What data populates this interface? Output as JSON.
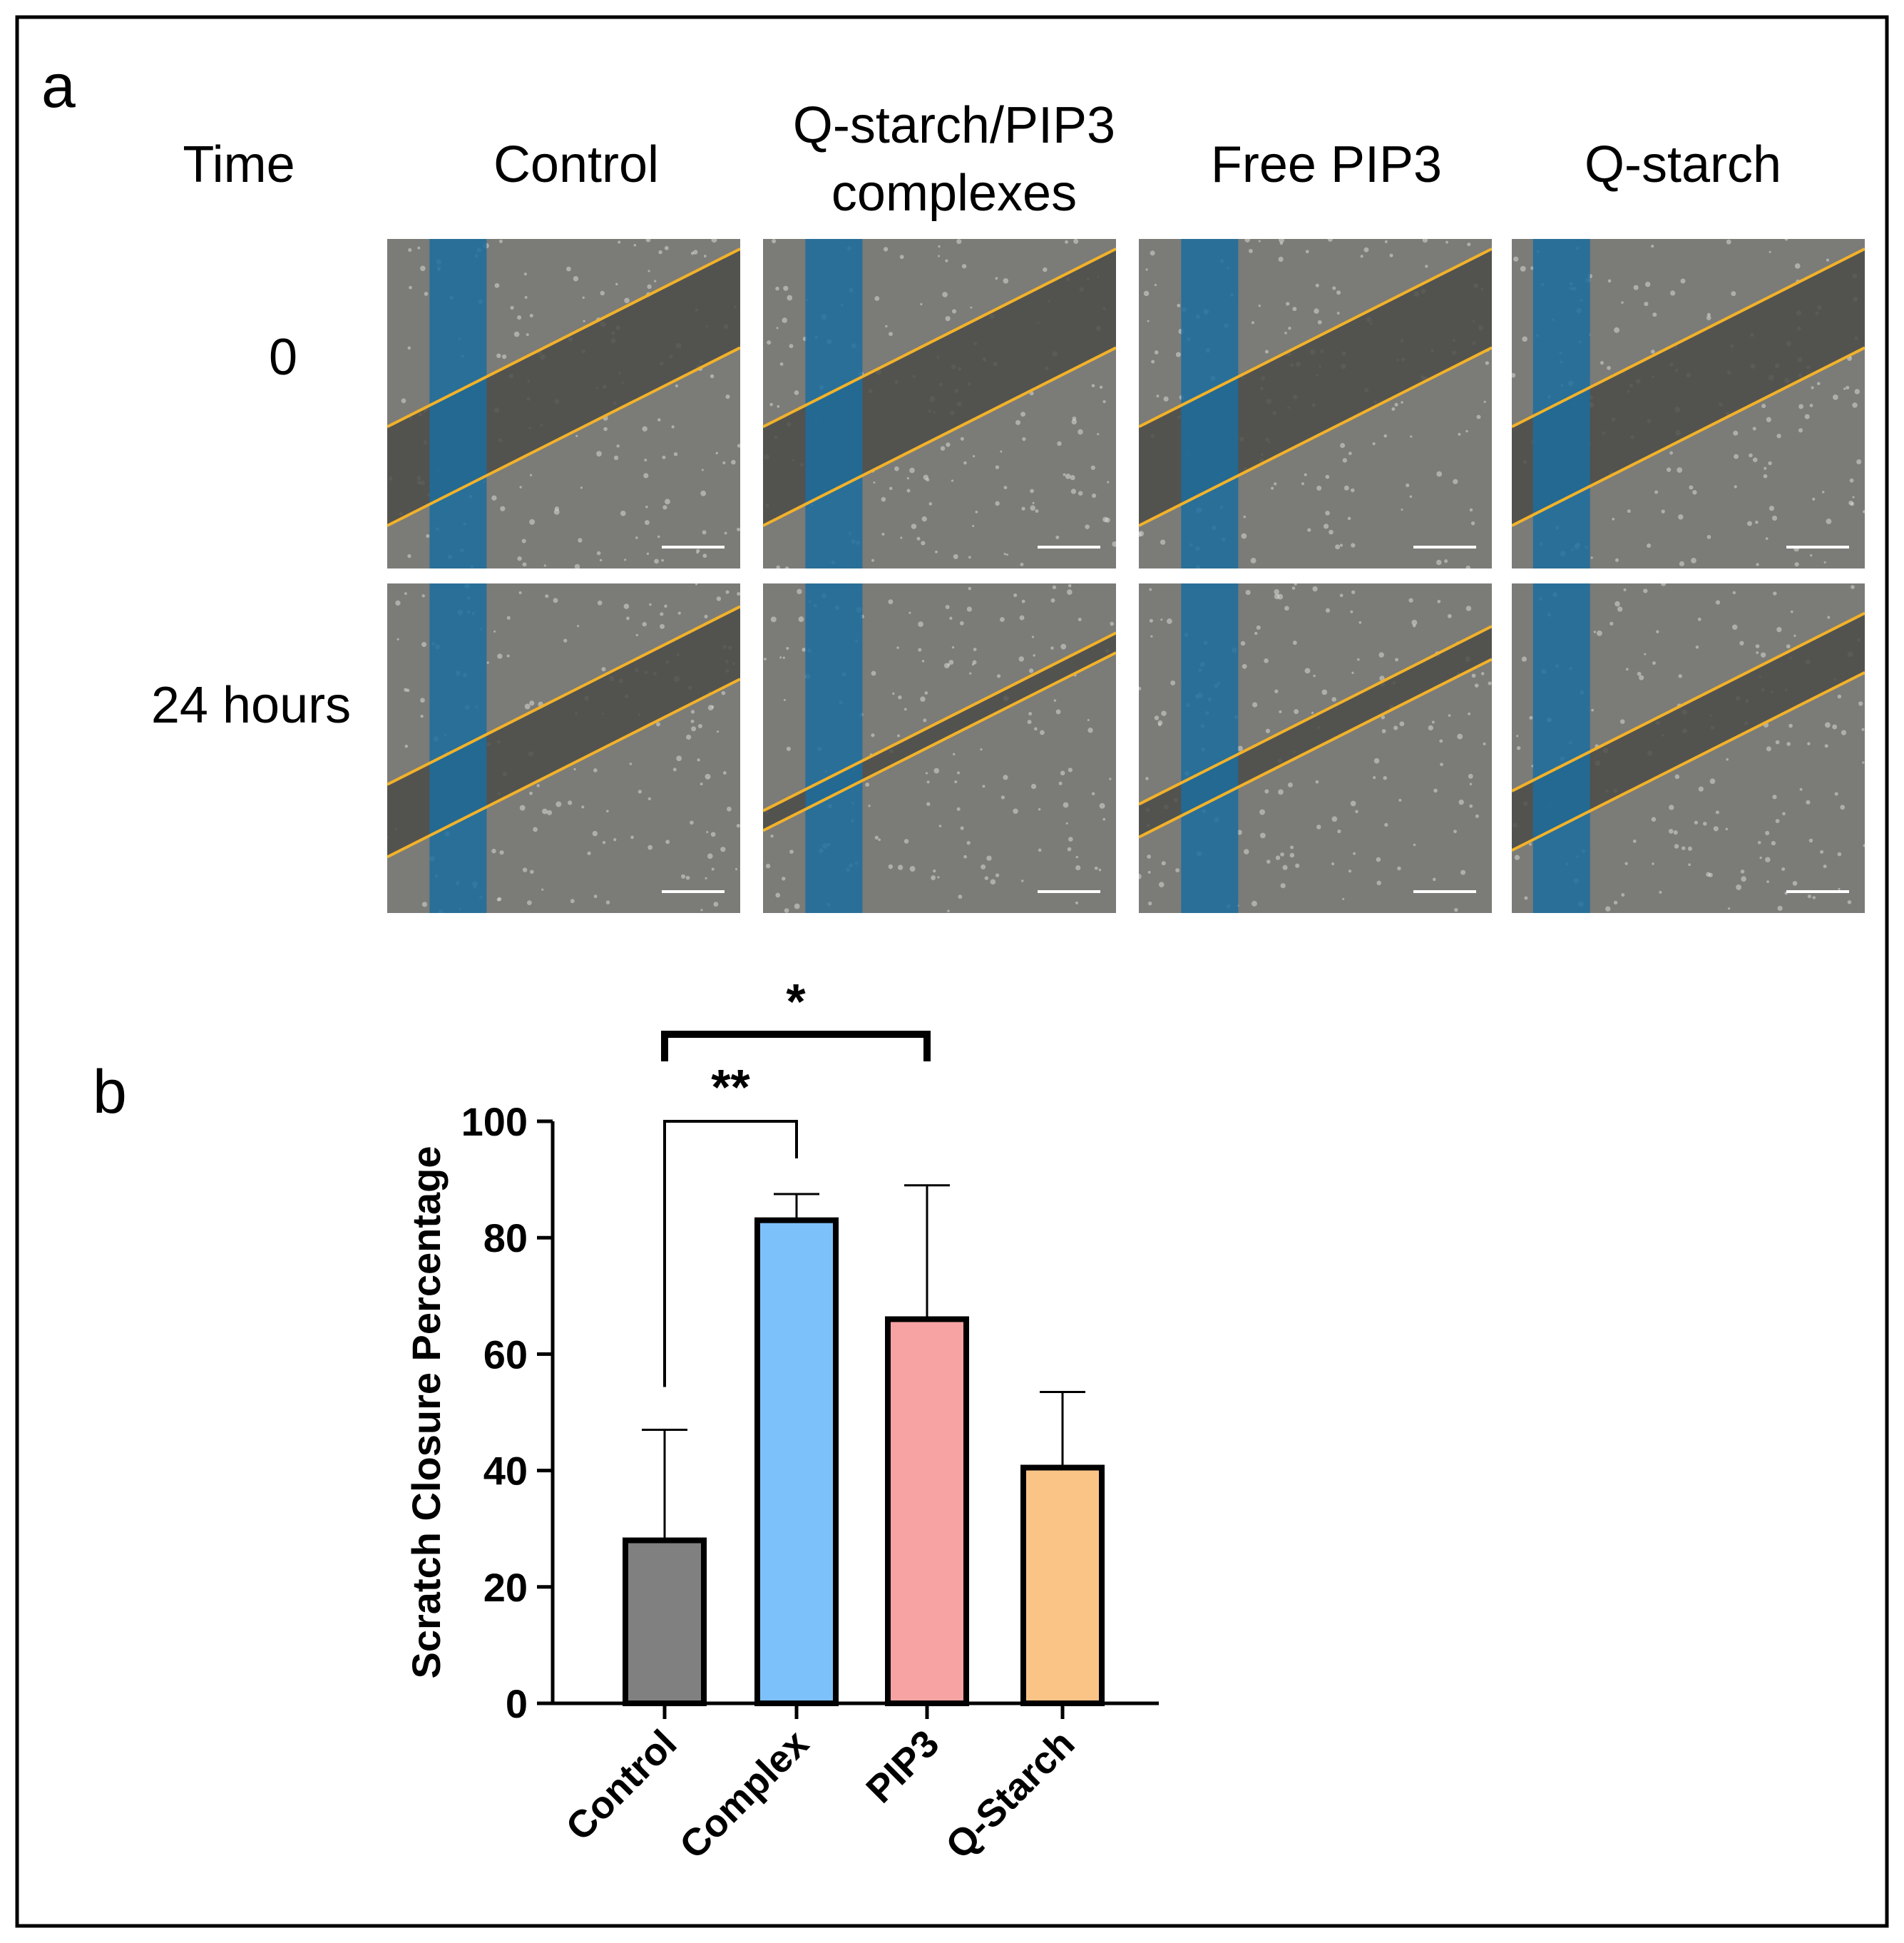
{
  "panel_a": {
    "label": "a",
    "time_header": "Time",
    "columns": [
      "Control",
      "Q-starch/PIP3",
      "complexes",
      "Free PIP3",
      "Q-starch"
    ],
    "rows": [
      "0",
      "24 hours"
    ]
  },
  "panel_b": {
    "label": "b"
  },
  "colors": {
    "background": "#ffffff",
    "border": "#000000",
    "scratch_line": "#f2b22a",
    "blue_marker": "#1b6d9e",
    "cells_bg": "#7b7b78",
    "gap": "#4b4b48",
    "scale_bar": "#ffffff",
    "control": "#808080",
    "complex": "#7dc1fb",
    "pip3": "#f7a3a3",
    "qstarch": "#fbc487"
  },
  "micrographs": [
    {
      "condition": "Control",
      "time": "0",
      "gap_width": 0.3
    },
    {
      "condition": "Q-starch/PIP3 complexes",
      "time": "0",
      "gap_width": 0.3
    },
    {
      "condition": "Free PIP3",
      "time": "0",
      "gap_width": 0.3
    },
    {
      "condition": "Q-starch",
      "time": "0",
      "gap_width": 0.3
    },
    {
      "condition": "Control",
      "time": "24 hours",
      "gap_width": 0.22
    },
    {
      "condition": "Q-starch/PIP3 complexes",
      "time": "24 hours",
      "gap_width": 0.06
    },
    {
      "condition": "Free PIP3",
      "time": "24 hours",
      "gap_width": 0.1
    },
    {
      "condition": "Q-starch",
      "time": "24 hours",
      "gap_width": 0.18
    }
  ],
  "chart_data": {
    "type": "bar",
    "title": "",
    "xlabel": "",
    "ylabel": "Scratch Closure Percentage",
    "categories": [
      "Control",
      "Complex",
      "PIP3",
      "Q-Starch"
    ],
    "values": [
      28,
      83,
      66,
      40.5
    ],
    "errors": [
      19,
      4.5,
      23,
      13
    ],
    "ylim": [
      0,
      100
    ],
    "yticks": [
      0,
      20,
      40,
      60,
      80,
      100
    ],
    "grid": false,
    "significance": [
      {
        "from": "Control",
        "to": "Complex",
        "label": "**"
      },
      {
        "from": "Control",
        "to": "PIP3",
        "label": "*"
      }
    ]
  }
}
